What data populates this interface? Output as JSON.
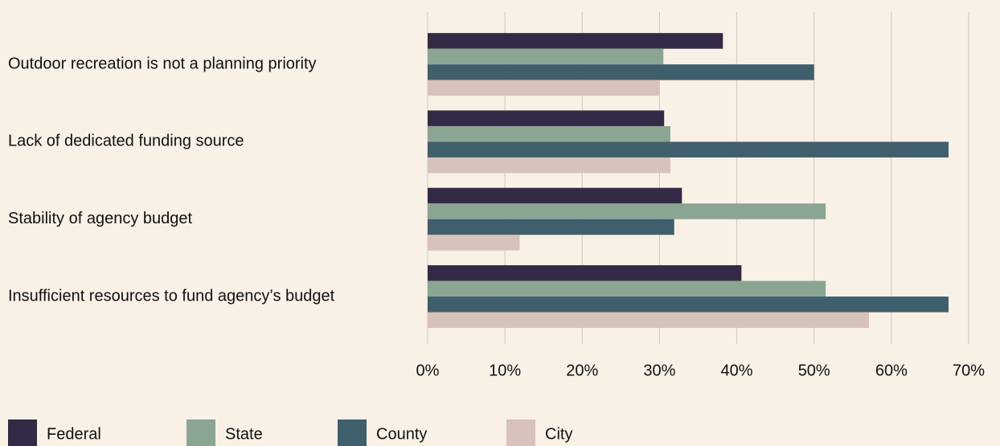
{
  "chart_data": {
    "type": "bar",
    "orientation": "horizontal",
    "categories": [
      "Outdoor recreation is not a planning priority",
      "Lack of dedicated funding source",
      "Stability of agency budget",
      "Insufficient resources to fund agency’s budget"
    ],
    "series": [
      {
        "name": "Federal",
        "color": "#332b45",
        "values": [
          38.2,
          30.6,
          32.9,
          40.6
        ]
      },
      {
        "name": "State",
        "color": "#8ba593",
        "values": [
          30.5,
          31.4,
          51.5,
          51.5
        ]
      },
      {
        "name": "County",
        "color": "#3f5f6c",
        "values": [
          50,
          67.4,
          31.9,
          67.4
        ]
      },
      {
        "name": "City",
        "color": "#d7c2bc",
        "values": [
          30,
          31.4,
          11.9,
          57.1
        ]
      }
    ],
    "xlim": [
      0,
      70
    ],
    "xticks": [
      {
        "value": 0,
        "label": "0%"
      },
      {
        "value": 10,
        "label": "10%"
      },
      {
        "value": 20,
        "label": "20%"
      },
      {
        "value": 30,
        "label": "30%"
      },
      {
        "value": 40,
        "label": "40%"
      },
      {
        "value": 50,
        "label": "50%"
      },
      {
        "value": 60,
        "label": "60%"
      },
      {
        "value": 70,
        "label": "70%"
      }
    ],
    "grid": true,
    "legend": "bottom"
  }
}
